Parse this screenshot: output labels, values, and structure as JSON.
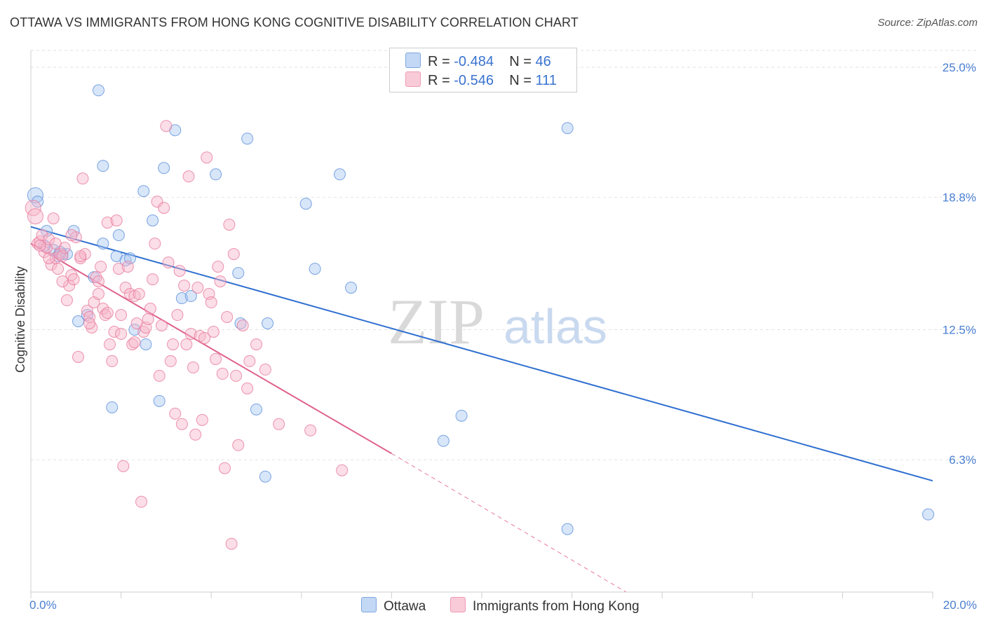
{
  "header": {
    "title": "OTTAWA VS IMMIGRANTS FROM HONG KONG COGNITIVE DISABILITY CORRELATION CHART",
    "source": "Source: ZipAtlas.com"
  },
  "watermark": {
    "zip": "ZIP",
    "atlas": "atlas"
  },
  "legend": {
    "rows": [
      {
        "r_label": "R = ",
        "r_value": "-0.484",
        "n_label": "N = ",
        "n_value": "46",
        "color": "#a9c8f2"
      },
      {
        "r_label": "R = ",
        "r_value": "-0.546",
        "n_label": "N = ",
        "n_value": "111",
        "color": "#f7b5c9"
      }
    ]
  },
  "bottom_legend": {
    "ottawa": "Ottawa",
    "hongkong": "Immigrants from Hong Kong"
  },
  "chart_data": {
    "type": "scatter",
    "title": "OTTAWA VS IMMIGRANTS FROM HONG KONG COGNITIVE DISABILITY CORRELATION CHART",
    "xlabel": "",
    "ylabel": "Cognitive Disability",
    "xlim": [
      0,
      20
    ],
    "ylim": [
      0,
      25.8
    ],
    "x_ticks": [
      "0.0%",
      "20.0%"
    ],
    "y_ticks": [
      {
        "value": 6.3,
        "label": "6.3%"
      },
      {
        "value": 12.5,
        "label": "12.5%"
      },
      {
        "value": 18.8,
        "label": "18.8%"
      },
      {
        "value": 25.0,
        "label": "25.0%"
      }
    ],
    "grid": true,
    "series": [
      {
        "name": "Ottawa",
        "color": "#5b8fdb",
        "fill": "#a9c8f2",
        "trend": {
          "x": [
            0,
            20
          ],
          "y": [
            17.4,
            5.3
          ],
          "style": "solid"
        },
        "points": [
          [
            0.1,
            18.9
          ],
          [
            0.15,
            18.6
          ],
          [
            0.35,
            17.2
          ],
          [
            0.5,
            16.3
          ],
          [
            0.6,
            16.0
          ],
          [
            0.7,
            16.1
          ],
          [
            0.95,
            17.2
          ],
          [
            1.05,
            12.9
          ],
          [
            1.25,
            13.2
          ],
          [
            1.4,
            15.0
          ],
          [
            1.5,
            23.9
          ],
          [
            1.6,
            20.3
          ],
          [
            1.8,
            8.8
          ],
          [
            1.9,
            16.0
          ],
          [
            1.95,
            17.0
          ],
          [
            2.1,
            15.8
          ],
          [
            2.3,
            12.5
          ],
          [
            2.5,
            19.1
          ],
          [
            2.55,
            11.8
          ],
          [
            2.7,
            17.7
          ],
          [
            2.85,
            9.1
          ],
          [
            2.95,
            20.2
          ],
          [
            3.2,
            22.0
          ],
          [
            3.35,
            14.0
          ],
          [
            3.55,
            14.1
          ],
          [
            4.1,
            19.9
          ],
          [
            4.6,
            15.2
          ],
          [
            4.65,
            12.8
          ],
          [
            4.8,
            21.6
          ],
          [
            5.0,
            8.7
          ],
          [
            5.2,
            5.5
          ],
          [
            5.25,
            12.8
          ],
          [
            6.1,
            18.5
          ],
          [
            6.3,
            15.4
          ],
          [
            6.85,
            19.9
          ],
          [
            7.1,
            14.5
          ],
          [
            9.55,
            8.4
          ],
          [
            9.15,
            7.2
          ],
          [
            11.9,
            22.1
          ],
          [
            11.9,
            3.0
          ],
          [
            19.9,
            3.7
          ],
          [
            0.8,
            16.1
          ],
          [
            1.6,
            16.6
          ],
          [
            2.2,
            15.9
          ],
          [
            0.3,
            16.5
          ],
          [
            0.65,
            16.2
          ]
        ]
      },
      {
        "name": "Immigrants from Hong Kong",
        "color": "#e8799c",
        "fill": "#f7b5c9",
        "trend": {
          "x": [
            0,
            8.0
          ],
          "y": [
            16.6,
            6.6
          ],
          "style": "solid",
          "extension": {
            "x": [
              8.0,
              13.2
            ],
            "y": [
              6.6,
              0.0
            ],
            "style": "dashed"
          }
        },
        "points": [
          [
            0.05,
            18.3
          ],
          [
            0.1,
            17.9
          ],
          [
            0.15,
            16.6
          ],
          [
            0.2,
            16.7
          ],
          [
            0.25,
            17.0
          ],
          [
            0.3,
            16.2
          ],
          [
            0.35,
            16.4
          ],
          [
            0.4,
            16.8
          ],
          [
            0.45,
            15.6
          ],
          [
            0.5,
            17.8
          ],
          [
            0.55,
            15.9
          ],
          [
            0.6,
            15.4
          ],
          [
            0.65,
            16.1
          ],
          [
            0.7,
            16.0
          ],
          [
            0.75,
            16.4
          ],
          [
            0.8,
            13.9
          ],
          [
            0.85,
            14.6
          ],
          [
            0.9,
            15.1
          ],
          [
            0.95,
            14.9
          ],
          [
            1.0,
            16.9
          ],
          [
            1.05,
            11.2
          ],
          [
            1.1,
            15.9
          ],
          [
            1.15,
            19.7
          ],
          [
            1.2,
            16.1
          ],
          [
            1.25,
            13.4
          ],
          [
            1.3,
            13.1
          ],
          [
            1.35,
            12.6
          ],
          [
            1.4,
            13.8
          ],
          [
            1.45,
            15.0
          ],
          [
            1.5,
            14.2
          ],
          [
            1.55,
            15.5
          ],
          [
            1.6,
            13.5
          ],
          [
            1.65,
            13.2
          ],
          [
            1.7,
            17.6
          ],
          [
            1.75,
            11.8
          ],
          [
            1.8,
            11.0
          ],
          [
            1.85,
            12.4
          ],
          [
            1.9,
            17.7
          ],
          [
            1.95,
            15.4
          ],
          [
            2.0,
            12.3
          ],
          [
            2.05,
            6.0
          ],
          [
            2.1,
            14.5
          ],
          [
            2.15,
            15.5
          ],
          [
            2.2,
            14.2
          ],
          [
            2.25,
            11.8
          ],
          [
            2.3,
            14.1
          ],
          [
            2.35,
            12.8
          ],
          [
            2.4,
            14.2
          ],
          [
            2.45,
            4.3
          ],
          [
            2.5,
            12.4
          ],
          [
            2.55,
            12.6
          ],
          [
            2.6,
            13.0
          ],
          [
            2.65,
            13.5
          ],
          [
            2.7,
            14.9
          ],
          [
            2.75,
            16.6
          ],
          [
            2.8,
            18.6
          ],
          [
            2.85,
            10.3
          ],
          [
            2.9,
            12.7
          ],
          [
            2.95,
            18.3
          ],
          [
            3.0,
            22.2
          ],
          [
            3.05,
            15.7
          ],
          [
            3.1,
            11.0
          ],
          [
            3.15,
            11.8
          ],
          [
            3.2,
            8.5
          ],
          [
            3.25,
            13.2
          ],
          [
            3.3,
            15.3
          ],
          [
            3.35,
            8.0
          ],
          [
            3.4,
            14.6
          ],
          [
            3.45,
            11.8
          ],
          [
            3.5,
            19.8
          ],
          [
            3.55,
            12.3
          ],
          [
            3.6,
            10.7
          ],
          [
            3.65,
            7.5
          ],
          [
            3.7,
            14.5
          ],
          [
            3.75,
            12.2
          ],
          [
            3.8,
            8.2
          ],
          [
            3.85,
            12.1
          ],
          [
            3.9,
            20.7
          ],
          [
            3.95,
            14.2
          ],
          [
            4.0,
            13.8
          ],
          [
            4.05,
            12.4
          ],
          [
            4.1,
            11.1
          ],
          [
            4.15,
            15.5
          ],
          [
            4.2,
            14.8
          ],
          [
            4.25,
            10.4
          ],
          [
            4.3,
            5.9
          ],
          [
            4.35,
            13.1
          ],
          [
            4.4,
            17.5
          ],
          [
            4.45,
            2.3
          ],
          [
            4.5,
            16.1
          ],
          [
            4.55,
            10.3
          ],
          [
            4.6,
            7.0
          ],
          [
            4.7,
            12.7
          ],
          [
            4.8,
            9.7
          ],
          [
            4.85,
            11.0
          ],
          [
            5.0,
            11.8
          ],
          [
            5.2,
            10.6
          ],
          [
            5.5,
            8.0
          ],
          [
            6.2,
            7.7
          ],
          [
            6.9,
            5.8
          ],
          [
            0.2,
            16.5
          ],
          [
            0.4,
            15.9
          ],
          [
            0.55,
            16.6
          ],
          [
            0.7,
            14.8
          ],
          [
            0.9,
            17.0
          ],
          [
            1.1,
            16.0
          ],
          [
            1.3,
            12.8
          ],
          [
            1.5,
            14.8
          ],
          [
            1.7,
            13.3
          ],
          [
            2.0,
            13.2
          ],
          [
            2.3,
            11.9
          ]
        ]
      }
    ]
  }
}
